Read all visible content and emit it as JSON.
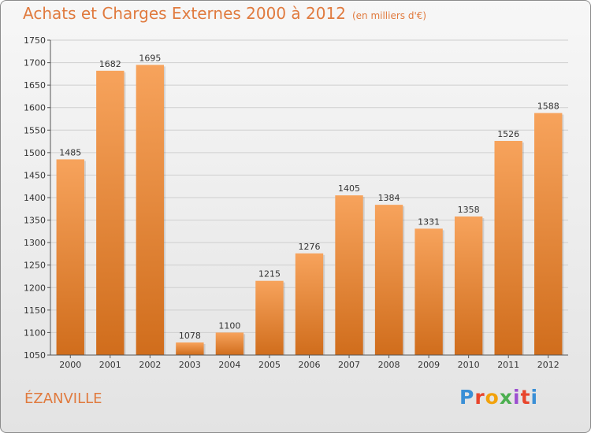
{
  "header": {
    "title": "Achats et Charges Externes 2000 à 2012",
    "unit": "(en milliers d'€)"
  },
  "footer": {
    "city": "ÉZANVILLE",
    "logo": "Proxiti"
  },
  "colors": {
    "bar_top": "#f7a35c",
    "bar_bottom": "#d06d1c",
    "title": "#e07a3e",
    "grid": "#cfcfcf"
  },
  "chart_data": {
    "type": "bar",
    "categories": [
      "2000",
      "2001",
      "2002",
      "2003",
      "2004",
      "2005",
      "2006",
      "2007",
      "2008",
      "2009",
      "2010",
      "2011",
      "2012"
    ],
    "values": [
      1485,
      1682,
      1695,
      1078,
      1100,
      1215,
      1276,
      1405,
      1384,
      1331,
      1358,
      1526,
      1588
    ],
    "ylim": [
      1050,
      1750
    ],
    "yticks": [
      1050,
      1100,
      1150,
      1200,
      1250,
      1300,
      1350,
      1400,
      1450,
      1500,
      1550,
      1600,
      1650,
      1700,
      1750
    ],
    "grid": true,
    "data_labels": true
  }
}
